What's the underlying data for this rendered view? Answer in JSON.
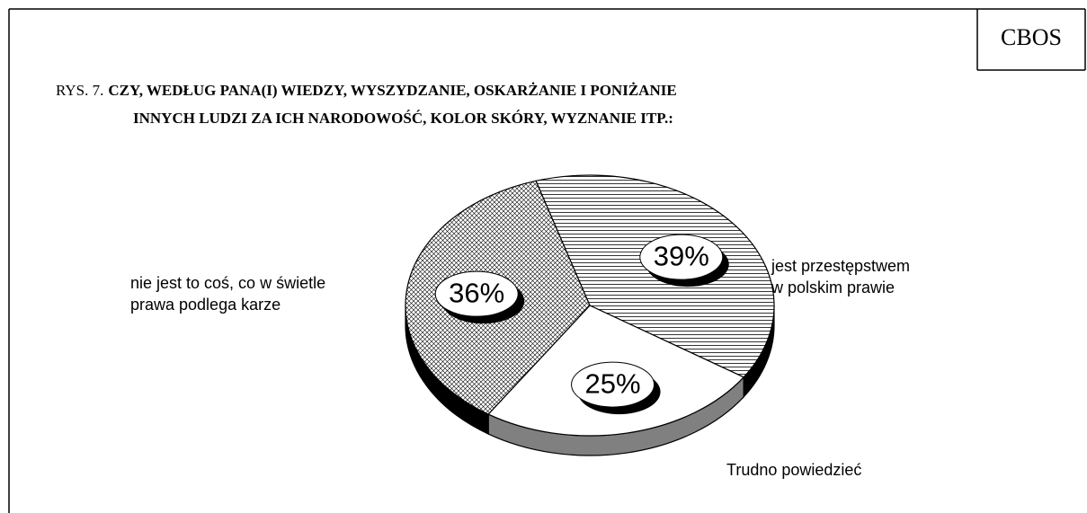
{
  "brand": "CBOS",
  "chart_data": {
    "type": "pie3d",
    "title_prefix": "RYS. 7.",
    "title": "CZY, WEDŁUG PANA(I) WIEDZY, WYSZYDZANIE, OSKARŻANIE I PONIŻANIE\nINNYCH LUDZI ZA ICH NARODOWOŚĆ, KOLOR SKÓRY, WYZNANIE ITP.:",
    "categories": [
      "jest przestępstwem\nw polskim prawie",
      "Trudno powiedzieć",
      "nie jest to coś, co w świetle\nprawa podlega karze"
    ],
    "values": [
      39,
      25,
      36
    ],
    "value_labels": [
      "39%",
      "25%",
      "36%"
    ]
  }
}
